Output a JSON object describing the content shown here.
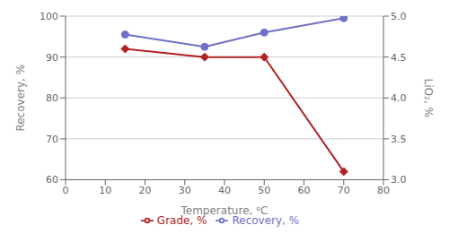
{
  "chart_data": {
    "type": "line",
    "x": [
      15,
      35,
      50,
      70
    ],
    "xlabel": "Temperature, ᵒC",
    "ylabel": "Recovery, %",
    "y2label": "LiO₂, %",
    "xlim": [
      0,
      80
    ],
    "xticks": [
      0,
      10,
      20,
      30,
      40,
      50,
      60,
      70,
      80
    ],
    "ylim": [
      60,
      100
    ],
    "yticks": [
      60,
      70,
      80,
      90,
      100
    ],
    "y2lim": [
      3.0,
      5.0
    ],
    "y2ticks": [
      {
        "value": 3.0,
        "label": "3.0"
      },
      3.5,
      {
        "value": 4.0,
        "label": "4.0"
      },
      4.5,
      {
        "value": 5.0,
        "label": "5.0"
      }
    ],
    "grid": true,
    "legend": "bottom",
    "series": [
      {
        "name": "Recovery, %",
        "color": "#7070c8",
        "marker": "circle",
        "values": [
          95.5,
          92.5,
          96.0,
          99.5
        ]
      },
      {
        "name": "Grade, %",
        "color": "#b22222",
        "marker": "diamond",
        "axis": "y2",
        "values": [
          4.6,
          4.5,
          4.5,
          3.1
        ]
      }
    ]
  }
}
